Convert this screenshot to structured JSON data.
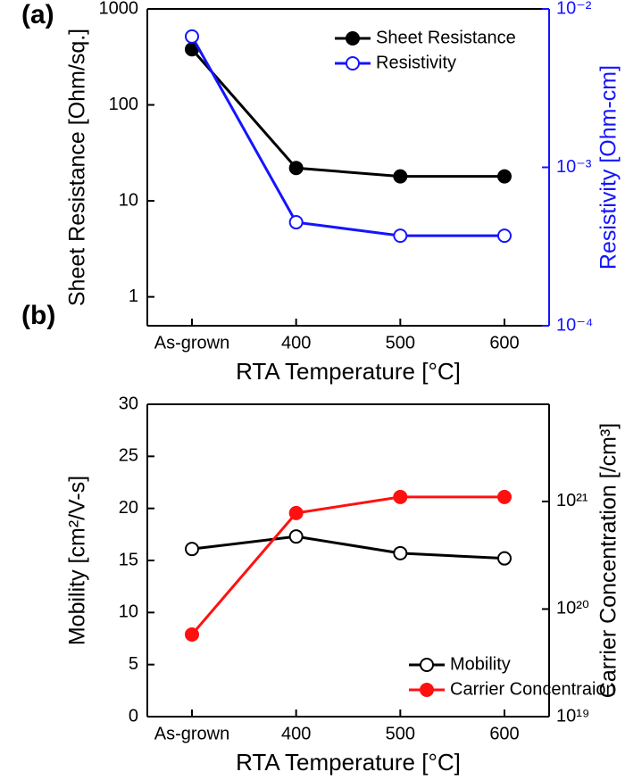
{
  "chart_data": [
    {
      "type": "line",
      "label": "(a)",
      "categories": [
        "As-grown",
        "400",
        "500",
        "600"
      ],
      "xlabel": "RTA Temperature [°C]",
      "ylabel": "Sheet Resistance [Ohm/sq.]",
      "y2label": "Resistivity [Ohm-cm]",
      "y2color": "#1414ff",
      "yscale": "log",
      "ylim": [
        0.5,
        1000
      ],
      "yticks": [
        1,
        10,
        100,
        1000
      ],
      "y2scale": "log",
      "y2lim": [
        0.0001,
        0.01
      ],
      "y2ticks": [
        {
          "value": 0.0001,
          "label": "10⁻⁴"
        },
        {
          "value": 0.001,
          "label": "10⁻³"
        },
        {
          "value": 0.01,
          "label": "10⁻²"
        }
      ],
      "legend": "upper right",
      "series": [
        {
          "name": "Sheet Resistance",
          "color": "#000000",
          "marker": "filled",
          "values": [
            380,
            22,
            18,
            18
          ]
        },
        {
          "name": "Resistivity",
          "color": "#1414ff",
          "marker": "open",
          "axis": "y2",
          "values": [
            0.0067,
            0.00045,
            0.00037,
            0.00037
          ]
        }
      ]
    },
    {
      "type": "line",
      "label": "(b)",
      "categories": [
        "As-grown",
        "400",
        "500",
        "600"
      ],
      "xlabel": "RTA Temperature [°C]",
      "ylabel": "Mobility [cm²/V-s]",
      "y2label": "Carrier Concentration [/cm³]",
      "y2color": "#000000",
      "yscale": "linear",
      "ylim": [
        0,
        30
      ],
      "yticks": [
        0,
        5,
        10,
        15,
        20,
        25,
        30
      ],
      "y2scale": "log",
      "y2lim": [
        1e+19,
        8e+21
      ],
      "y2ticks": [
        {
          "value": 1e+19,
          "label": "10¹⁹"
        },
        {
          "value": 1e+20,
          "label": "10²⁰"
        },
        {
          "value": 1e+21,
          "label": "10²¹"
        }
      ],
      "legend": "lower right",
      "series": [
        {
          "name": "Mobility",
          "color": "#000000",
          "marker": "open",
          "values": [
            16.1,
            17.3,
            15.7,
            15.2
          ]
        },
        {
          "name": "Carrier Concentraion",
          "color": "#ff1010",
          "marker": "filled",
          "axis": "y2",
          "values": [
            5.8e+19,
            7.8e+20,
            1.1e+21,
            1.1e+21
          ]
        }
      ]
    }
  ]
}
